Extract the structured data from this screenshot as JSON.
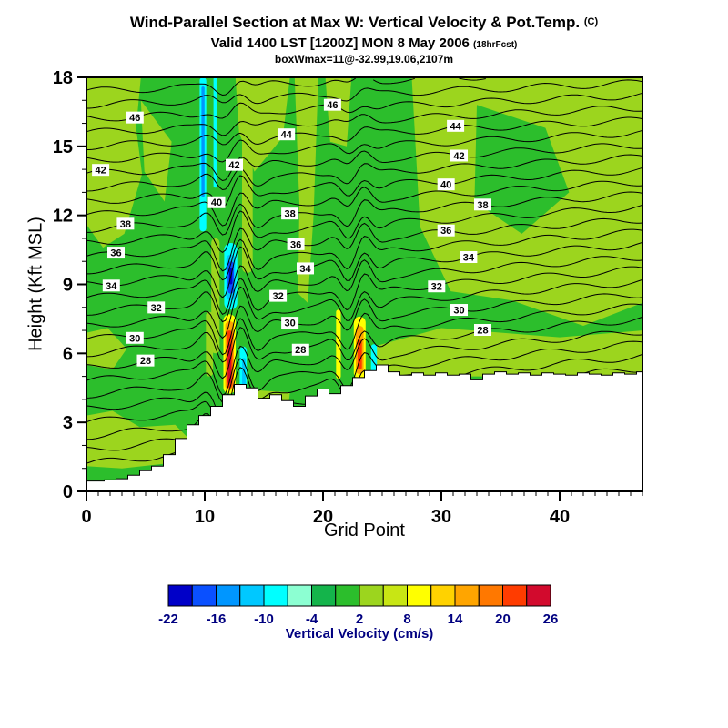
{
  "title": {
    "main": "Wind-Parallel Section at Max W: Vertical Velocity & Pot.Temp.",
    "main_suffix": "(C)",
    "sub": "Valid 1400 LST [1200Z] MON 8 May 2006",
    "sub_suffix": "(18hrFcst)",
    "info": "boxWmax=11@-32.99,19.06,2107m"
  },
  "chart_data": {
    "type": "contour",
    "title": "Wind-Parallel Section at Max W: Vertical Velocity & Pot.Temp. (C)",
    "xlabel": "Grid Point",
    "ylabel": "Height (Kft MSL)",
    "x_range": [
      0,
      47
    ],
    "y_range": [
      0,
      18
    ],
    "xticks": [
      0,
      10,
      20,
      30,
      40
    ],
    "yticks": [
      0,
      3,
      6,
      9,
      12,
      15,
      18
    ],
    "grid": false,
    "colorbar": {
      "label": "Vertical Velocity (cm/s)",
      "label_color": "#000080",
      "cell_min": -22,
      "cell_step": 3,
      "tick_labels": [
        -22,
        -16,
        -10,
        -4,
        2,
        8,
        14,
        20,
        26
      ],
      "colors": [
        "#0000C8",
        "#0A50FF",
        "#0096FF",
        "#00C8FF",
        "#00FFFF",
        "#8CFFD2",
        "#14B44B",
        "#2CBE2C",
        "#9CD51E",
        "#C8E614",
        "#FFFF00",
        "#FFD200",
        "#FFA500",
        "#FF7800",
        "#FF3C00",
        "#D20A2D"
      ]
    },
    "field": {
      "bg_ci": 7
    },
    "terrain_kft": [
      0.45,
      0.45,
      0.5,
      0.55,
      0.7,
      0.9,
      1.1,
      1.6,
      2.3,
      2.9,
      3.3,
      3.7,
      4.2,
      4.65,
      4.5,
      4.05,
      4.2,
      3.95,
      3.7,
      4.15,
      4.45,
      4.25,
      4.6,
      4.95,
      5.25,
      5.5,
      5.2,
      5.05,
      5.15,
      5.05,
      5.15,
      5.05,
      5.1,
      4.85,
      5.1,
      5.2,
      5.1,
      5.15,
      5.05,
      5.15,
      5.1,
      5.05,
      5.15,
      5.1,
      5.05,
      5.15,
      5.1,
      5.2
    ],
    "theta": {
      "units": "C",
      "levels_min": 21,
      "levels_max": 48,
      "ref_level": 28,
      "left_base": 5.4,
      "left_slope": 0.6,
      "right_base": 7.5,
      "right_slope": 0.54,
      "ripple_amp": 0.15,
      "waves": [
        {
          "g": 12.3,
          "w": 2.2,
          "a": 1.15,
          "f": 1.9
        },
        {
          "g": 22.8,
          "w": 1.8,
          "a": 0.8,
          "f": 1.9
        }
      ],
      "labels": [
        {
          "v": 46,
          "gp": 4.1
        },
        {
          "v": 42,
          "gp": 1.2
        },
        {
          "v": 38,
          "gp": 3.3
        },
        {
          "v": 36,
          "gp": 2.5
        },
        {
          "v": 34,
          "gp": 2.1
        },
        {
          "v": 32,
          "gp": 5.9
        },
        {
          "v": 30,
          "gp": 4.1
        },
        {
          "v": 28,
          "gp": 5.0
        },
        {
          "v": 46,
          "gp": 20.8
        },
        {
          "v": 44,
          "gp": 16.9
        },
        {
          "v": 42,
          "gp": 12.5
        },
        {
          "v": 40,
          "gp": 11.0
        },
        {
          "v": 38,
          "gp": 17.2
        },
        {
          "v": 36,
          "gp": 17.7
        },
        {
          "v": 34,
          "gp": 18.5
        },
        {
          "v": 32,
          "gp": 16.2
        },
        {
          "v": 30,
          "gp": 17.2
        },
        {
          "v": 28,
          "gp": 18.1
        },
        {
          "v": 44,
          "gp": 31.2
        },
        {
          "v": 42,
          "gp": 31.5
        },
        {
          "v": 40,
          "gp": 30.4
        },
        {
          "v": 38,
          "gp": 33.5
        },
        {
          "v": 36,
          "gp": 30.4
        },
        {
          "v": 34,
          "gp": 32.3
        },
        {
          "v": 32,
          "gp": 29.6
        },
        {
          "v": 30,
          "gp": 31.5
        },
        {
          "v": 28,
          "gp": 33.5
        }
      ]
    },
    "patches": [
      {
        "ci": 8,
        "pts": [
          [
            0,
            18
          ],
          [
            4.6,
            18
          ],
          [
            4.2,
            15.8
          ],
          [
            4.7,
            13.8
          ],
          [
            3.2,
            11.2
          ],
          [
            1.4,
            10.6
          ],
          [
            0,
            11.6
          ]
        ]
      },
      {
        "ci": 8,
        "pts": [
          [
            4.6,
            17
          ],
          [
            7.2,
            15.2
          ],
          [
            6.6,
            12.6
          ],
          [
            4.9,
            13.9
          ]
        ]
      },
      {
        "ci": 8,
        "pts": [
          [
            0,
            3.3
          ],
          [
            2.2,
            3.5
          ],
          [
            4.5,
            2.8
          ],
          [
            7.5,
            2.9
          ],
          [
            9.2,
            2.0
          ],
          [
            6.5,
            1.2
          ],
          [
            3,
            1.0
          ],
          [
            0,
            1.1
          ]
        ]
      },
      {
        "ci": 8,
        "pts": [
          [
            0,
            6.9
          ],
          [
            1.8,
            7.1
          ],
          [
            3.4,
            6.2
          ],
          [
            2.2,
            5.3
          ],
          [
            0,
            5.5
          ]
        ]
      },
      {
        "ci": 8,
        "pts": [
          [
            12.6,
            18
          ],
          [
            17.2,
            18
          ],
          [
            16.6,
            15.4
          ],
          [
            14.2,
            13.9
          ],
          [
            12.9,
            15.6
          ]
        ]
      },
      {
        "ci": 8,
        "pts": [
          [
            17.6,
            18
          ],
          [
            19.6,
            18
          ],
          [
            19.2,
            12
          ],
          [
            18.7,
            8.2
          ],
          [
            17.9,
            8.6
          ],
          [
            18.0,
            12.5
          ]
        ]
      },
      {
        "ci": 8,
        "pts": [
          [
            20.2,
            18
          ],
          [
            22.4,
            18
          ],
          [
            22.0,
            15.0
          ],
          [
            20.6,
            15.2
          ]
        ]
      },
      {
        "ci": 8,
        "pts": [
          [
            27.5,
            18
          ],
          [
            47,
            18
          ],
          [
            47,
            8.2
          ],
          [
            42,
            7.2
          ],
          [
            36,
            8.3
          ],
          [
            30.8,
            8.7
          ],
          [
            28.2,
            11.5
          ]
        ]
      },
      {
        "ci": 7,
        "pts": [
          [
            33,
            16.8
          ],
          [
            38.8,
            15.8
          ],
          [
            40.8,
            13
          ],
          [
            36.8,
            11.2
          ],
          [
            32.8,
            12.6
          ]
        ]
      },
      {
        "ci": 8,
        "pts": [
          [
            24.3,
            6.3
          ],
          [
            30,
            7.1
          ],
          [
            40,
            6.7
          ],
          [
            47,
            7.0
          ],
          [
            47,
            5.0
          ],
          [
            24.3,
            5.0
          ]
        ]
      },
      {
        "ci": 8,
        "pts": [
          [
            14.3,
            4.4
          ],
          [
            17.2,
            4.3
          ],
          [
            17.0,
            3.4
          ],
          [
            14.6,
            3.5
          ]
        ]
      }
    ],
    "streaks": [
      {
        "g": 10.4,
        "w": 0.3,
        "h0": 5.0,
        "h1": 7.8,
        "ci": 8
      },
      {
        "g": 10.9,
        "w": 0.35,
        "h0": 6.0,
        "h1": 11.0,
        "ci": 8
      },
      {
        "g": 13.6,
        "w": 0.45,
        "h0": 9.5,
        "h1": 18.0,
        "ci": 8
      },
      {
        "g": 9.85,
        "w": 0.28,
        "h0": 11.3,
        "h1": 18.0,
        "ci": 4
      },
      {
        "g": 9.85,
        "w": 0.13,
        "h0": 12.8,
        "h1": 17.6,
        "ci": 2
      },
      {
        "g": 10.9,
        "w": 0.16,
        "h0": 13.2,
        "h1": 18.0,
        "ci": 4
      },
      {
        "g": 12.2,
        "w": 0.55,
        "h0": 7.9,
        "h1": 10.8,
        "ci": 4
      },
      {
        "g": 12.2,
        "w": 0.38,
        "h0": 8.3,
        "h1": 10.3,
        "ci": 3
      },
      {
        "g": 12.2,
        "w": 0.26,
        "h0": 8.6,
        "h1": 10.0,
        "ci": 1
      },
      {
        "g": 12.2,
        "w": 0.13,
        "h0": 9.0,
        "h1": 9.7,
        "ci": 0
      },
      {
        "g": 12.1,
        "w": 0.52,
        "h0": 4.25,
        "h1": 7.7,
        "ci": 10
      },
      {
        "g": 12.1,
        "w": 0.36,
        "h0": 4.4,
        "h1": 7.4,
        "ci": 12
      },
      {
        "g": 12.1,
        "w": 0.25,
        "h0": 4.5,
        "h1": 7.0,
        "ci": 14
      },
      {
        "g": 12.1,
        "w": 0.14,
        "h0": 4.7,
        "h1": 6.4,
        "ci": 15
      },
      {
        "g": 13.25,
        "w": 0.3,
        "h0": 3.8,
        "h1": 6.3,
        "ci": 4
      },
      {
        "g": 13.3,
        "w": 0.15,
        "h0": 4.2,
        "h1": 5.8,
        "ci": 3
      },
      {
        "g": 21.3,
        "w": 0.2,
        "h0": 4.9,
        "h1": 7.9,
        "ci": 10
      },
      {
        "g": 23.1,
        "w": 0.5,
        "h0": 4.9,
        "h1": 7.6,
        "ci": 10
      },
      {
        "g": 23.1,
        "w": 0.33,
        "h0": 5.1,
        "h1": 7.2,
        "ci": 12
      },
      {
        "g": 23.1,
        "w": 0.18,
        "h0": 5.3,
        "h1": 6.6,
        "ci": 14
      },
      {
        "g": 24.3,
        "w": 0.25,
        "h0": 5.0,
        "h1": 6.4,
        "ci": 4
      }
    ]
  }
}
